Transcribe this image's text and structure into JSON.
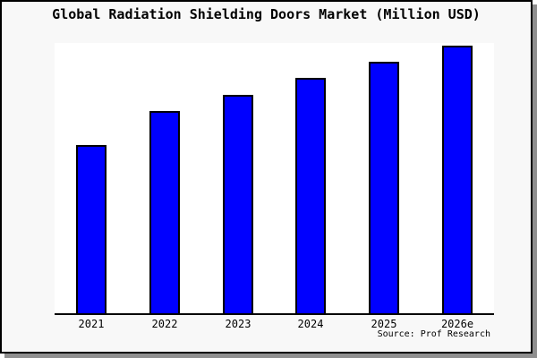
{
  "title": "Global Radiation Shielding Doors Market (Million USD)",
  "source": "Source: Prof Research",
  "colors": {
    "bar_fill": "#0000ff",
    "bar_border": "#000000",
    "plot_bg": "#ffffff",
    "page_bg": "#f8f8f8",
    "frame_border": "#000000",
    "frame_shadow": "#8f8f8f",
    "axis": "#000000",
    "text": "#000000"
  },
  "chart_data": {
    "type": "bar",
    "title": "Global Radiation Shielding Doors Market (Million USD)",
    "categories": [
      "2021",
      "2022",
      "2023",
      "2024",
      "2025",
      "2026e"
    ],
    "values": [
      188,
      226,
      244,
      263,
      281,
      299
    ],
    "xlabel": "",
    "ylabel": "Million USD",
    "ylim": [
      0,
      302
    ],
    "value_units": "relative units estimated from bar heights (no y-axis scale shown)",
    "grid": false,
    "legend": false,
    "y_axis_visible": false,
    "x_axis_visible": true,
    "source": "Source: Prof Research"
  }
}
